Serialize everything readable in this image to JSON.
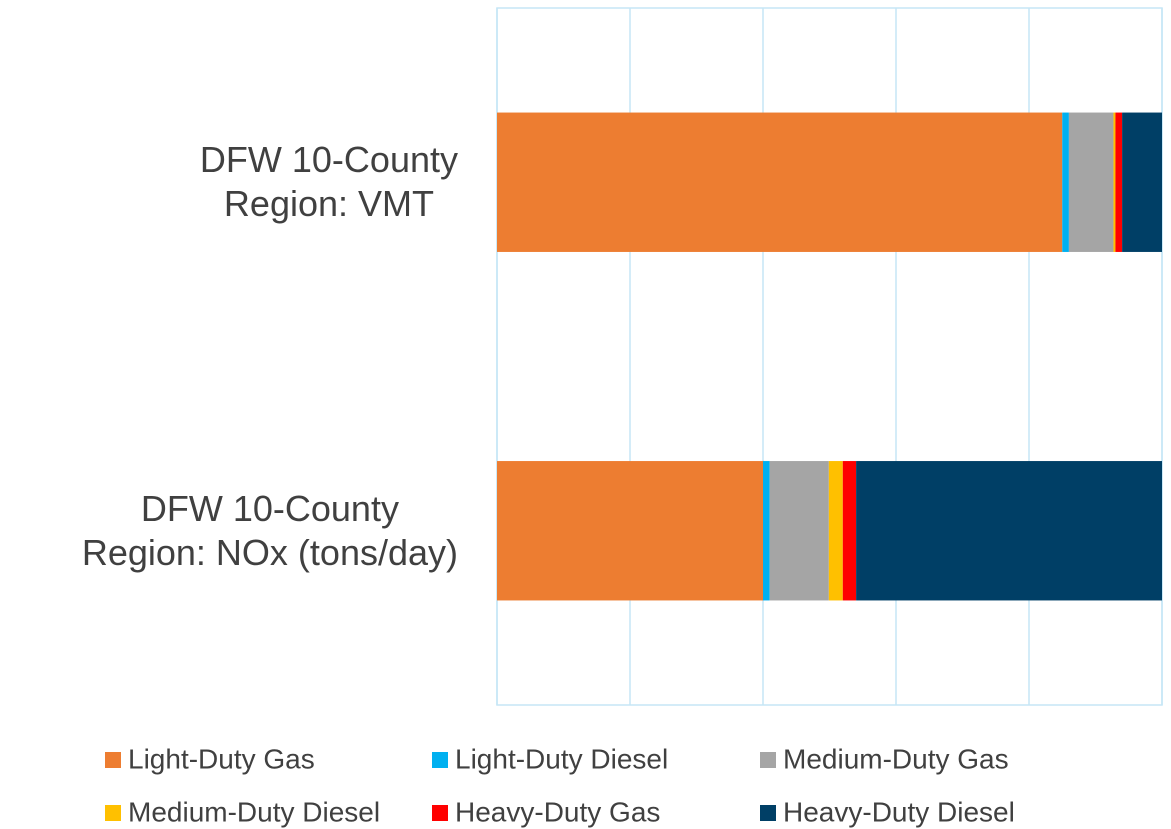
{
  "chart_data": {
    "type": "stacked_barh",
    "categories": [
      "DFW 10-County\nRegion: VMT",
      "DFW 10-County\nRegion: NOx (tons/day)"
    ],
    "series": [
      {
        "name": "Light-Duty Gas",
        "color": "#ED7D31",
        "values": [
          85.0,
          40.0
        ]
      },
      {
        "name": "Light-Duty Diesel",
        "color": "#00B0F0",
        "values": [
          1.0,
          1.0
        ]
      },
      {
        "name": "Medium-Duty Gas",
        "color": "#A5A5A5",
        "values": [
          6.7,
          8.9
        ]
      },
      {
        "name": "Medium-Duty Diesel",
        "color": "#FFC000",
        "values": [
          0.3,
          2.1
        ]
      },
      {
        "name": "Heavy-Duty Gas",
        "color": "#FF0000",
        "values": [
          1.0,
          2.0
        ]
      },
      {
        "name": "Heavy-Duty Diesel",
        "color": "#003F66",
        "values": [
          6.0,
          46.0
        ]
      }
    ],
    "xlim": [
      0,
      100
    ],
    "xticks": [
      0,
      20,
      40,
      60,
      80,
      100
    ],
    "grid": true,
    "legend": "bottom"
  }
}
